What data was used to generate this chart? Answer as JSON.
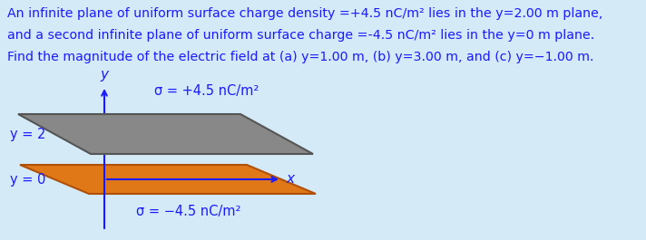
{
  "background_color": "#d4eaf7",
  "text_lines": [
    "An infinite plane of uniform surface charge density =+4.5 nC/m² lies in the y=2.00 m plane,",
    "and a second infinite plane of uniform surface charge =-4.5 nC/m² lies in the y=0 m plane.",
    "Find the magnitude of the electric field at (a) y=1.00 m, (b) y=3.00 m, and (c) y=−1.00 m."
  ],
  "text_fontsize": 10.2,
  "text_color": "#1a1aff",
  "label_color": "#1a1aff",
  "axis_color": "#1a1aff",
  "plane_y2_color": "#888888",
  "plane_y2_edge_color": "#555555",
  "plane_y0_color": "#e07818",
  "plane_y0_edge_color": "#b05008",
  "sigma_upper": "σ = +4.5 nC/m²",
  "sigma_lower": "σ = −4.5 nC/m²",
  "label_y2": "y = 2",
  "label_y0": "y = 0",
  "label_y": "y",
  "label_x": "x"
}
